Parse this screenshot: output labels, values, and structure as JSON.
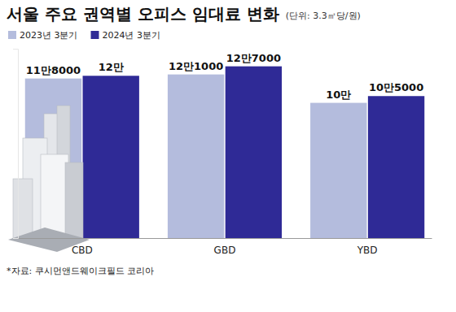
{
  "chart_data": {
    "type": "bar",
    "title": "서울 주요 권역별 오피스 임대료 변화",
    "subtitle": "(단위: 3.3㎡당/원)",
    "categories": [
      "CBD",
      "GBD",
      "YBD"
    ],
    "series": [
      {
        "name": "2023년 3분기",
        "color": "#b4bcdd",
        "values": [
          118000,
          121000,
          100000
        ],
        "value_labels": [
          "11만8000",
          "12만1000",
          "10만"
        ]
      },
      {
        "name": "2024년 3분기",
        "color": "#2f2a96",
        "values": [
          120000,
          127000,
          105000
        ],
        "value_labels": [
          "12만",
          "12만7000",
          "10만5000"
        ]
      }
    ],
    "ylim": [
      0,
      140000
    ],
    "yticks": [],
    "data_labels": true,
    "tick_labels": "x",
    "legend": "top-left",
    "annotations": [
      "*자료: 쿠시먼앤드웨이크필드 코리아"
    ]
  }
}
